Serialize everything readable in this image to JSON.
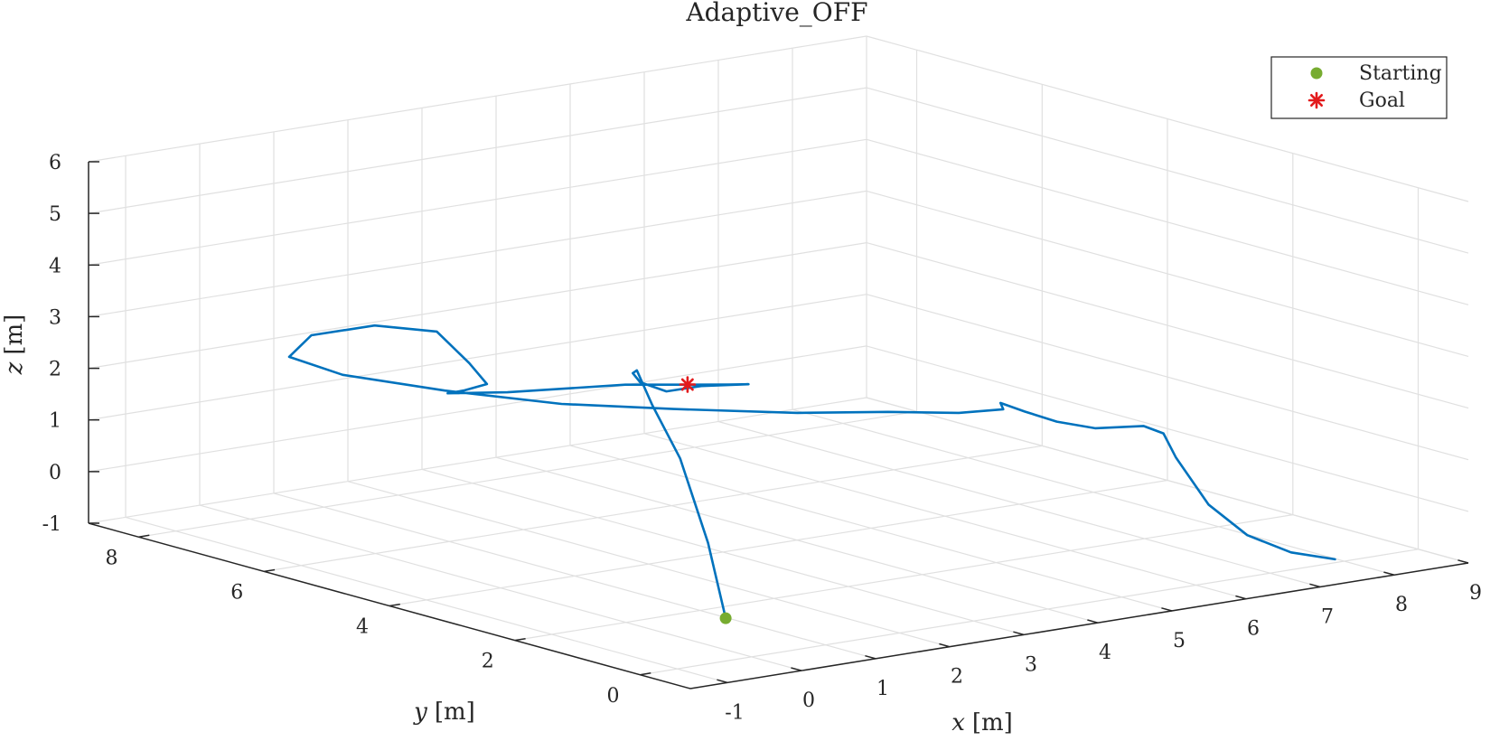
{
  "chart_data": {
    "type": "line3d",
    "title": "Adaptive_OFF",
    "xlabel": {
      "var": "x",
      "unit": "[m]"
    },
    "ylabel": {
      "var": "y",
      "unit": "[m]"
    },
    "zlabel": {
      "var": "z",
      "unit": "[m]"
    },
    "xlim": [
      -1.5,
      9
    ],
    "ylim": [
      -0.8,
      8.8
    ],
    "zlim": [
      -1,
      6
    ],
    "xticks": [
      -1,
      0,
      1,
      2,
      3,
      4,
      5,
      6,
      7,
      8,
      9
    ],
    "yticks": [
      0,
      2,
      4,
      6,
      8
    ],
    "zticks": [
      -1,
      0,
      1,
      2,
      3,
      4,
      5,
      6
    ],
    "grid": true,
    "legend": {
      "placement": "top-right",
      "entries": [
        "Starting",
        "Goal"
      ]
    },
    "series": [
      {
        "type": "line",
        "color": "#0072BD",
        "points": [
          [
            0.5,
            1.0,
            -0.7
          ],
          [
            0.6,
            1.4,
            0.6
          ],
          [
            0.9,
            2.2,
            1.9
          ],
          [
            1.2,
            3.0,
            2.6
          ],
          [
            1.5,
            3.6,
            3.0
          ],
          [
            1.7,
            3.9,
            2.8
          ],
          [
            1.8,
            3.9,
            2.6
          ],
          [
            1.9,
            3.6,
            2.5
          ],
          [
            2.2,
            3.4,
            2.6
          ],
          [
            2.5,
            3.0,
            2.7
          ],
          [
            2.4,
            3.2,
            2.65
          ],
          [
            1.6,
            3.9,
            2.6
          ],
          [
            0.6,
            4.6,
            2.45
          ],
          [
            0.3,
            5.2,
            2.3
          ],
          [
            0.6,
            5.3,
            2.25
          ],
          [
            1.0,
            5.4,
            2.25
          ],
          [
            1.1,
            5.8,
            2.5
          ],
          [
            1.0,
            6.2,
            3.0
          ],
          [
            0.5,
            6.6,
            3.1
          ],
          [
            -0.1,
            6.9,
            2.95
          ],
          [
            -0.4,
            6.9,
            2.6
          ],
          [
            -0.1,
            6.4,
            2.35
          ],
          [
            0.6,
            5.6,
            2.15
          ],
          [
            1.5,
            4.8,
            1.95
          ],
          [
            2.5,
            4.2,
            1.82
          ],
          [
            3.5,
            3.4,
            1.78
          ],
          [
            4.3,
            2.9,
            1.78
          ],
          [
            5.0,
            2.6,
            1.7
          ],
          [
            5.6,
            2.6,
            1.63
          ],
          [
            5.9,
            3.0,
            1.55
          ],
          [
            6.4,
            3.2,
            1.2
          ],
          [
            7.0,
            3.4,
            0.8
          ],
          [
            7.6,
            3.5,
            0.5
          ],
          [
            8.0,
            3.2,
            0.55
          ],
          [
            8.1,
            3.0,
            0.45
          ],
          [
            8.1,
            2.8,
            0.05
          ],
          [
            8.2,
            2.4,
            -0.75
          ],
          [
            8.3,
            1.9,
            -1.2
          ],
          [
            8.3,
            1.2,
            -1.3
          ],
          [
            8.3,
            0.5,
            -1.2
          ]
        ]
      },
      {
        "type": "scatter",
        "name": "Starting",
        "color": "#77AC30",
        "point": [
          0.5,
          1.0,
          -0.7
        ]
      },
      {
        "type": "scatter",
        "name": "Goal",
        "color": "#E31A1C",
        "point": [
          2.1,
          3.5,
          2.62
        ]
      }
    ]
  }
}
